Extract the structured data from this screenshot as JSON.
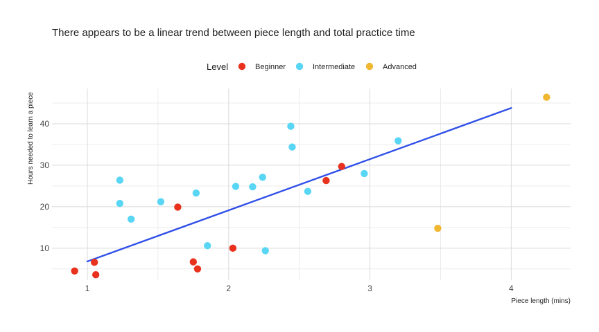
{
  "chart_data": {
    "type": "scatter",
    "title": "There appears to be a linear trend between piece length and total practice time",
    "xlabel": "Piece length (mins)",
    "ylabel": "Hours needed to learn a piece",
    "xlim": [
      0.75,
      4.42
    ],
    "ylim": [
      2.3,
      48.5
    ],
    "x_ticks": [
      1,
      2,
      3,
      4
    ],
    "y_ticks": [
      10,
      20,
      30,
      40
    ],
    "grid": true,
    "legend": {
      "title": "Level",
      "position": "top",
      "entries": [
        {
          "label": "Beginner",
          "color": "#e8321e"
        },
        {
          "label": "Intermediate",
          "color": "#5ad6f5"
        },
        {
          "label": "Advanced",
          "color": "#f0b731"
        }
      ]
    },
    "series": [
      {
        "name": "Beginner",
        "color": "#e8321e",
        "points": [
          [
            0.91,
            4.5
          ],
          [
            1.05,
            6.6
          ],
          [
            1.06,
            3.6
          ],
          [
            1.64,
            19.9
          ],
          [
            1.75,
            6.7
          ],
          [
            1.78,
            5.0
          ],
          [
            2.03,
            10.0
          ],
          [
            2.69,
            26.3
          ],
          [
            2.8,
            29.7
          ]
        ]
      },
      {
        "name": "Intermediate",
        "color": "#5ad6f5",
        "points": [
          [
            1.23,
            26.4
          ],
          [
            1.23,
            20.8
          ],
          [
            1.31,
            17.0
          ],
          [
            1.52,
            21.2
          ],
          [
            1.77,
            23.3
          ],
          [
            1.85,
            10.6
          ],
          [
            2.05,
            24.9
          ],
          [
            2.17,
            24.8
          ],
          [
            2.24,
            27.1
          ],
          [
            2.26,
            9.4
          ],
          [
            2.44,
            39.4
          ],
          [
            2.45,
            34.4
          ],
          [
            2.56,
            23.7
          ],
          [
            2.96,
            28.0
          ],
          [
            3.2,
            35.9
          ]
        ]
      },
      {
        "name": "Advanced",
        "color": "#f0b731",
        "points": [
          [
            3.48,
            14.8
          ],
          [
            4.25,
            46.4
          ]
        ]
      }
    ],
    "trend_line": {
      "color": "#3050e8",
      "x": [
        1.0,
        4.0
      ],
      "y": [
        6.8,
        43.8
      ]
    }
  }
}
